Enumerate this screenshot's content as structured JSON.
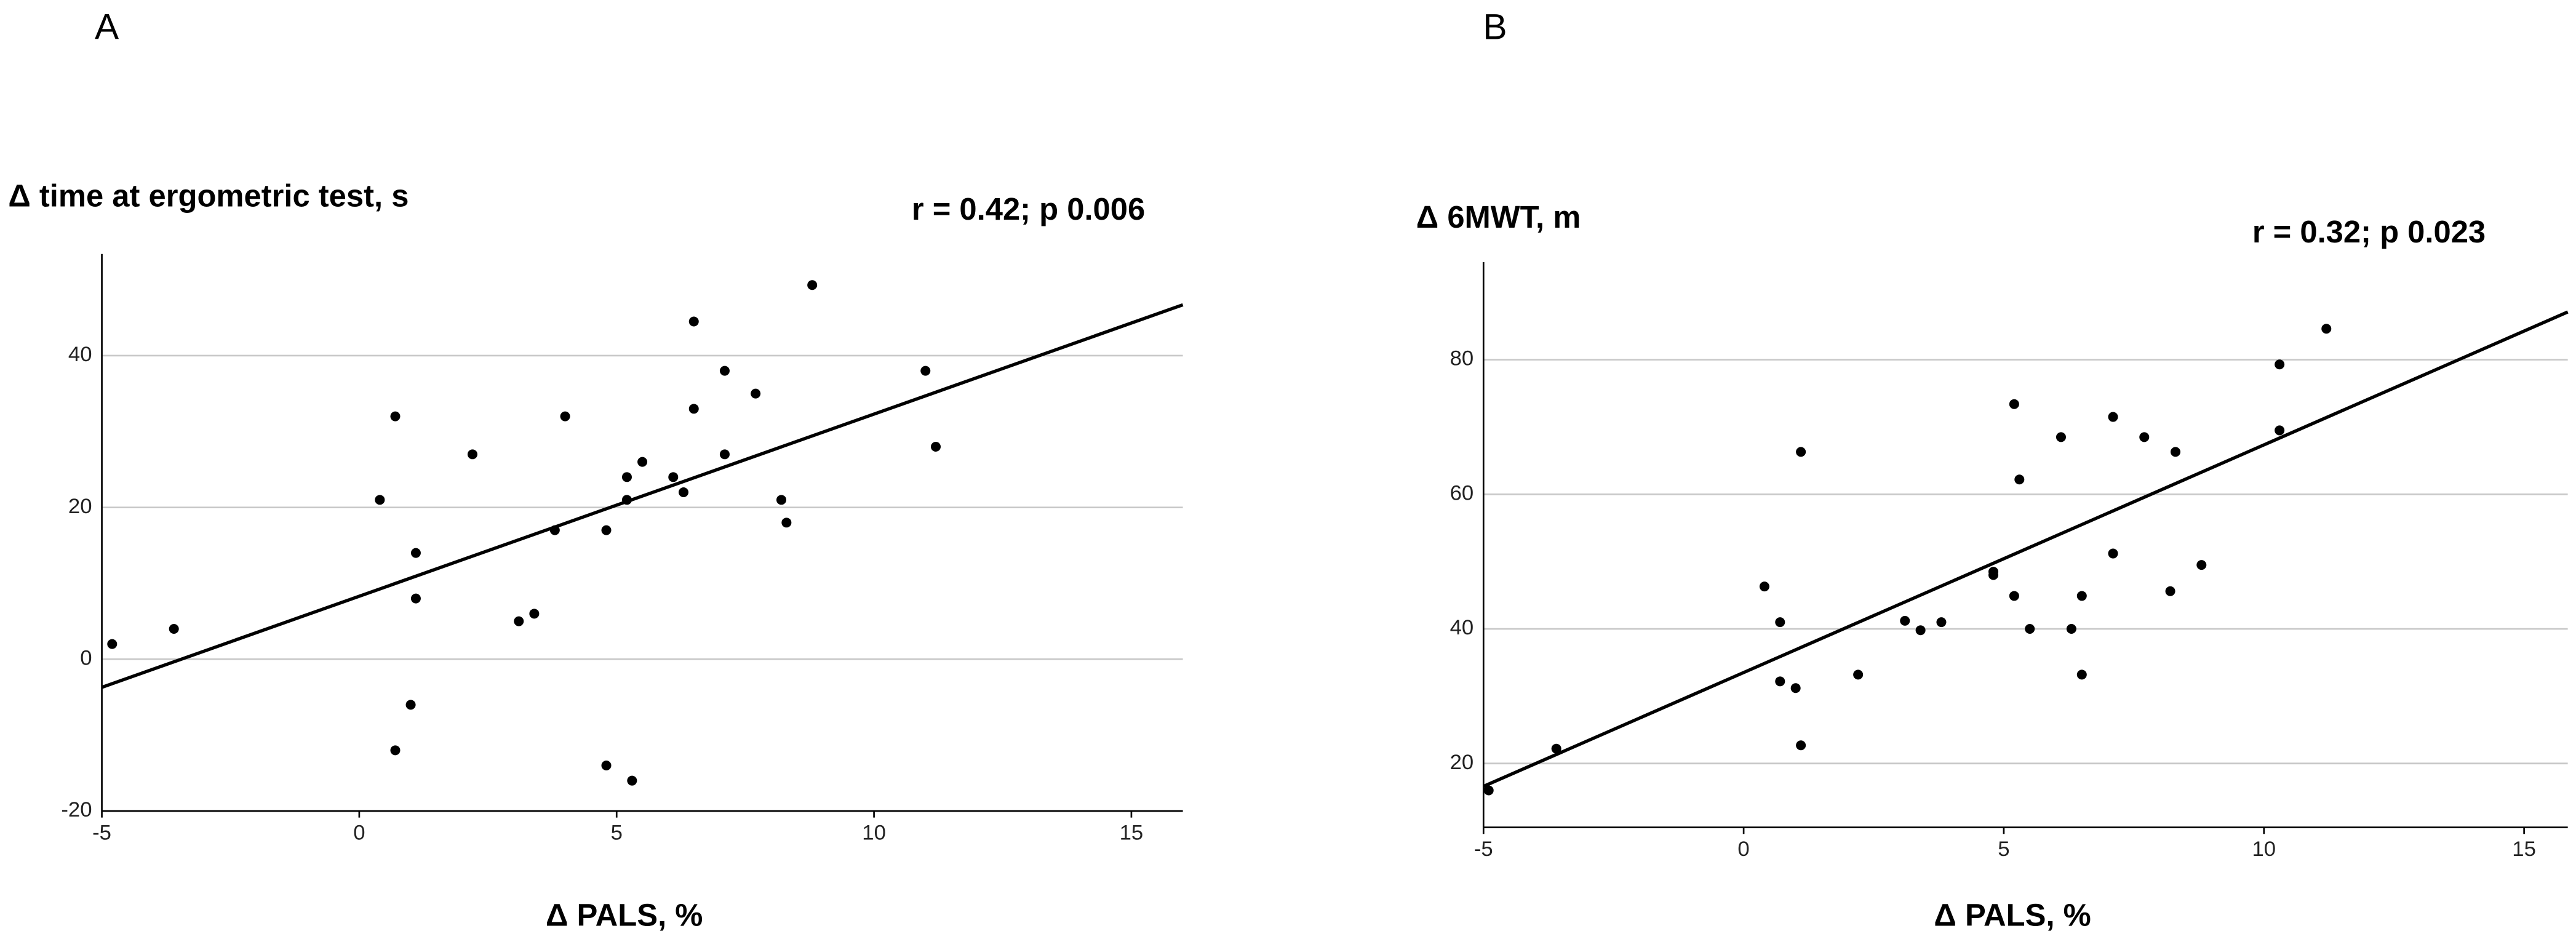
{
  "chart_data": [
    {
      "type": "scatter",
      "panel": "A",
      "y_label": "Δ time at ergometric test, s",
      "annotation": "r = 0.42; p 0.006",
      "x_label": "Δ PALS, %",
      "x": [
        -4.8,
        -3.6,
        0.4,
        0.7,
        0.7,
        1.0,
        1.1,
        1.1,
        2.2,
        3.1,
        3.4,
        3.8,
        4.0,
        4.8,
        4.8,
        5.2,
        5.2,
        5.3,
        5.5,
        6.1,
        6.3,
        6.5,
        6.5,
        7.1,
        7.1,
        7.7,
        8.2,
        8.3,
        8.8,
        11.0,
        11.2
      ],
      "values": [
        2,
        4,
        21,
        32,
        -12,
        -6,
        14,
        8,
        27,
        5,
        6,
        17,
        32,
        17,
        -14,
        24,
        21,
        -16,
        26,
        24,
        22,
        33,
        44.5,
        38,
        27,
        35,
        21,
        18,
        49.3,
        38,
        28
      ],
      "fit": {
        "x": [
          -5,
          16
        ],
        "values": [
          -3.7,
          46.7
        ]
      },
      "color": "#000000",
      "xlim": [
        -5,
        16
      ],
      "ylim": [
        -20,
        53.4
      ],
      "xticks": [
        -5,
        0,
        5,
        10,
        15
      ],
      "yticks": [
        -20,
        0,
        20,
        40
      ],
      "grid": true
    },
    {
      "type": "scatter",
      "panel": "B",
      "y_label": "Δ 6MWT, m",
      "annotation": "r = 0.32; p 0.023",
      "x_label": "Δ PALS, %",
      "x": [
        -4.9,
        -3.6,
        0.4,
        0.7,
        0.7,
        1.0,
        1.1,
        1.1,
        2.2,
        3.1,
        3.4,
        3.8,
        4.8,
        4.8,
        5.2,
        5.2,
        5.3,
        5.5,
        6.1,
        6.3,
        6.5,
        6.5,
        7.1,
        7.1,
        7.7,
        8.2,
        8.3,
        8.8,
        10.3,
        10.3,
        11.2
      ],
      "values": [
        16,
        22.2,
        46.3,
        41,
        32.2,
        31.2,
        66.3,
        22.7,
        33.2,
        41.2,
        39.8,
        41,
        48.5,
        48,
        73.4,
        44.9,
        62.2,
        40,
        68.5,
        40,
        44.9,
        33.2,
        51.2,
        71.5,
        68.5,
        45.6,
        66.3,
        49.5,
        79.3,
        69.5,
        84.6
      ],
      "fit": {
        "x": [
          -5,
          15.84
        ],
        "values": [
          16.6,
          87.1
        ]
      },
      "color": "#000000",
      "xlim": [
        -5,
        15.84
      ],
      "ylim": [
        10.5,
        94.5
      ],
      "xticks": [
        -5,
        0,
        5,
        10,
        15
      ],
      "yticks": [
        20,
        40,
        60,
        80
      ],
      "grid": true
    }
  ]
}
